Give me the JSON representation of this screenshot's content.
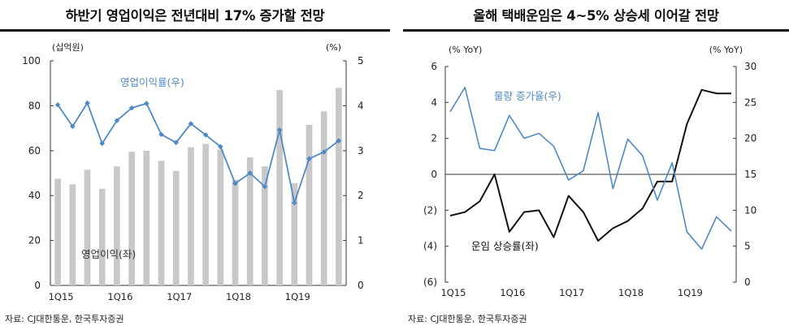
{
  "left": {
    "title": "하반기 영업이익은 전년대비 17% 증가할 전망",
    "source": "자료: CJ대한통운, 한국투자증권",
    "chart_data": {
      "type": "bar+line",
      "left_unit": "(십억원)",
      "right_unit": "(%)",
      "left_axis": {
        "min": 0,
        "max": 100,
        "ticks": [
          0,
          20,
          40,
          60,
          80,
          100
        ]
      },
      "right_axis": {
        "min": 0,
        "max": 5,
        "ticks": [
          0,
          1,
          2,
          3,
          4,
          5
        ]
      },
      "x_labels": [
        "1Q15",
        "1Q16",
        "1Q17",
        "1Q18",
        "1Q19"
      ],
      "x_label_every": 4,
      "bars": {
        "name": "영업이익(좌)",
        "axis": "left",
        "color": "#c8c8c8",
        "values": [
          47.5,
          45,
          51.5,
          43,
          53,
          59.5,
          60,
          55.5,
          51,
          61.5,
          63,
          60.5,
          47,
          57,
          53,
          87,
          45.5,
          71.5,
          77.5,
          88
        ]
      },
      "line": {
        "name": "영업이익률(우)",
        "axis": "right",
        "color": "#4f8ac4",
        "values": [
          4.02,
          3.54,
          4.06,
          3.16,
          3.67,
          3.95,
          4.05,
          3.36,
          3.18,
          3.6,
          3.35,
          3.09,
          2.27,
          2.5,
          2.2,
          3.46,
          1.84,
          2.82,
          2.97,
          3.22
        ]
      },
      "annotations": {
        "line_label": "영업이익률(우)",
        "bar_label": "영업이익(좌)"
      }
    }
  },
  "right": {
    "title": "올해 택배운임은 4~5% 상승세 이어갈 전망",
    "source": "자료: CJ대한통운, 한국투자증권",
    "chart_data": {
      "type": "line",
      "left_unit": "(% YoY)",
      "right_unit": "(% YoY)",
      "left_axis": {
        "min": -6,
        "max": 6,
        "ticks": [
          -6,
          -4,
          -2,
          0,
          2,
          4,
          6
        ],
        "tick_labels": [
          "(6)",
          "(4)",
          "(2)",
          "0",
          "2",
          "4",
          "6"
        ]
      },
      "right_axis": {
        "min": 0,
        "max": 30,
        "ticks": [
          0,
          5,
          10,
          15,
          20,
          25,
          30
        ]
      },
      "x_labels": [
        "1Q15",
        "1Q16",
        "1Q17",
        "1Q18",
        "1Q19"
      ],
      "x_label_every": 4,
      "series": [
        {
          "name": "운임 상승률(좌)",
          "axis": "left",
          "color": "#111111",
          "values": [
            -2.3,
            -2.1,
            -1.5,
            0,
            -3.2,
            -2.1,
            -2.0,
            -3.5,
            -1.2,
            -2.1,
            -3.7,
            -3.0,
            -2.6,
            -1.9,
            -0.4,
            -0.4,
            2.8,
            4.7,
            4.5,
            4.5
          ]
        },
        {
          "name": "물량 증가율(우)",
          "axis": "right",
          "color": "#4f8ac4",
          "values": [
            23.7,
            27.1,
            18.6,
            18.3,
            23.2,
            20.0,
            20.7,
            18.9,
            14.2,
            15.5,
            23.6,
            13.0,
            19.9,
            17.6,
            11.4,
            16.6,
            7.0,
            4.6,
            9.1,
            7.1
          ]
        }
      ],
      "annotations": {
        "blue_label": "물량 증가율(우)",
        "black_label": "운임 상승률(좌)"
      }
    }
  }
}
